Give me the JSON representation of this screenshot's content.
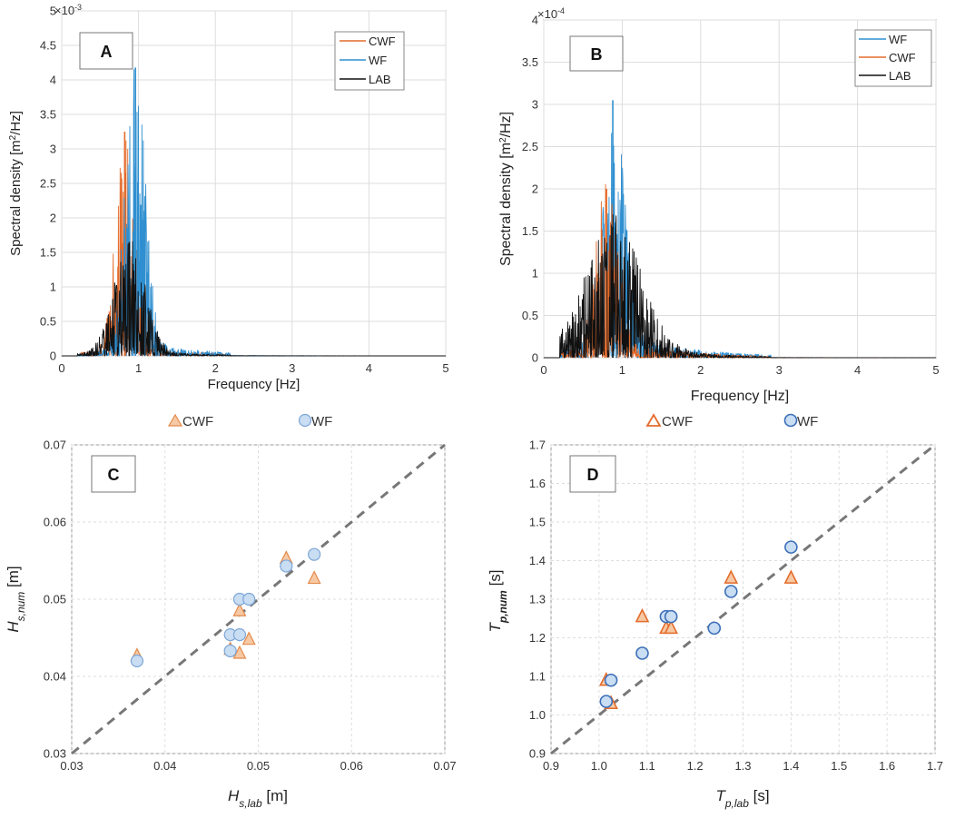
{
  "colors": {
    "cwf": "#E46B2B",
    "wf": "#2F8FD0",
    "lab": "#111111",
    "marker_cwf_fill": "#F6C9A4",
    "marker_cwf_edge": "#E48A4C",
    "marker_wf_fill": "#C9DDF3",
    "marker_wf_edge": "#7DA6D6",
    "marker_wf_edge_d": "#3C6FB8",
    "dashed": "#777777",
    "grid": "#DDDDDD"
  },
  "chart_data": [
    {
      "type": "line",
      "panel": "A",
      "xlabel": "Frequency [Hz]",
      "ylabel_main": "Spectral density [m",
      "ylabel_sup": "2",
      "ylabel_tail": "/Hz]",
      "exponent_base": "×10",
      "exponent_power": "-3",
      "xlim": [
        0,
        5
      ],
      "ylim": [
        0,
        5
      ],
      "xticks": [
        "0",
        "1",
        "2",
        "3",
        "4",
        "5"
      ],
      "yticks": [
        "0",
        "0.5",
        "1",
        "1.5",
        "2",
        "2.5",
        "3",
        "3.5",
        "4",
        "4.5",
        "5"
      ],
      "legend_position": "top-right",
      "series": [
        {
          "name": "CWF",
          "peak_freq": 0.82,
          "peak_value": 3.25,
          "spread": 0.12,
          "floor_start": 0.25
        },
        {
          "name": "WF",
          "peak_freq": 0.96,
          "peak_value": 4.18,
          "spread": 0.13,
          "floor_start": 0.3
        },
        {
          "name": "LAB",
          "peak_freq": 0.88,
          "peak_value": 1.65,
          "spread": 0.2,
          "floor_start": 0.2
        }
      ]
    },
    {
      "type": "line",
      "panel": "B",
      "xlabel": "Frequency [Hz]",
      "ylabel_main": "Spectral density [m",
      "ylabel_sup": "2",
      "ylabel_tail": "/Hz]",
      "exponent_base": "×10",
      "exponent_power": "-4",
      "xlim": [
        0,
        5
      ],
      "ylim": [
        0,
        4
      ],
      "xticks": [
        "0",
        "1",
        "2",
        "3",
        "4",
        "5"
      ],
      "yticks": [
        "0",
        "0.5",
        "1",
        "1.5",
        "2",
        "2.5",
        "3",
        "3.5",
        "4"
      ],
      "legend_position": "top-right",
      "series": [
        {
          "name": "WF",
          "peak_freq": 0.88,
          "peak_value": 3.05,
          "spread": 0.14,
          "floor_start": 0.2
        },
        {
          "name": "CWF",
          "peak_freq": 0.8,
          "peak_value": 2.0,
          "spread": 0.14,
          "floor_start": 0.2
        },
        {
          "name": "LAB",
          "peak_freq": 0.88,
          "peak_value": 1.55,
          "spread": 0.35,
          "floor_start": 0.2
        }
      ]
    },
    {
      "type": "scatter",
      "panel": "C",
      "xlabel_main": "H",
      "xlabel_sub": "s,lab",
      "xlabel_unit": " [m]",
      "ylabel_main": "H",
      "ylabel_sub": "s,num",
      "ylabel_unit": " [m]",
      "xlim": [
        0.03,
        0.07
      ],
      "ylim": [
        0.03,
        0.07
      ],
      "xticks": [
        "0.03",
        "0.04",
        "0.05",
        "0.06",
        "0.07"
      ],
      "yticks": [
        "0.03",
        "0.04",
        "0.05",
        "0.06",
        "0.07"
      ],
      "reference_line": "y = x",
      "series": [
        {
          "name": "CWF",
          "marker": "triangle",
          "x": [
            0.037,
            0.047,
            0.048,
            0.048,
            0.049,
            0.053,
            0.056
          ],
          "y": [
            0.0427,
            0.0435,
            0.043,
            0.0485,
            0.0448,
            0.0553,
            0.0527
          ]
        },
        {
          "name": "WF",
          "marker": "circle",
          "x": [
            0.037,
            0.047,
            0.047,
            0.048,
            0.048,
            0.049,
            0.053,
            0.056
          ],
          "y": [
            0.042,
            0.0433,
            0.0454,
            0.05,
            0.0454,
            0.05,
            0.0543,
            0.0558
          ]
        }
      ]
    },
    {
      "type": "scatter",
      "panel": "D",
      "xlabel_main": "T",
      "xlabel_sub": "p,lab",
      "xlabel_unit": " [s]",
      "ylabel_main": "T",
      "ylabel_sub": "p,num",
      "ylabel_unit": " [s]",
      "xlim": [
        0.9,
        1.7
      ],
      "ylim": [
        0.9,
        1.7
      ],
      "xticks": [
        "0.9",
        "1.0",
        "1.1",
        "1.2",
        "1.3",
        "1.4",
        "1.5",
        "1.6",
        "1.7"
      ],
      "yticks": [
        "0.9",
        "1.0",
        "1.1",
        "1.2",
        "1.3",
        "1.4",
        "1.5",
        "1.6",
        "1.7"
      ],
      "reference_line": "y = x",
      "series": [
        {
          "name": "CWF",
          "marker": "triangle",
          "x": [
            1.015,
            1.025,
            1.09,
            1.14,
            1.15,
            1.275,
            1.4
          ],
          "y": [
            1.09,
            1.03,
            1.255,
            1.225,
            1.225,
            1.355,
            1.355
          ]
        },
        {
          "name": "WF",
          "marker": "circle",
          "x": [
            1.015,
            1.025,
            1.09,
            1.14,
            1.15,
            1.24,
            1.275,
            1.4
          ],
          "y": [
            1.035,
            1.09,
            1.16,
            1.255,
            1.255,
            1.225,
            1.32,
            1.435
          ]
        }
      ]
    }
  ],
  "legend_rows": {
    "cd_cwf": "CWF",
    "cd_wf": "WF"
  }
}
